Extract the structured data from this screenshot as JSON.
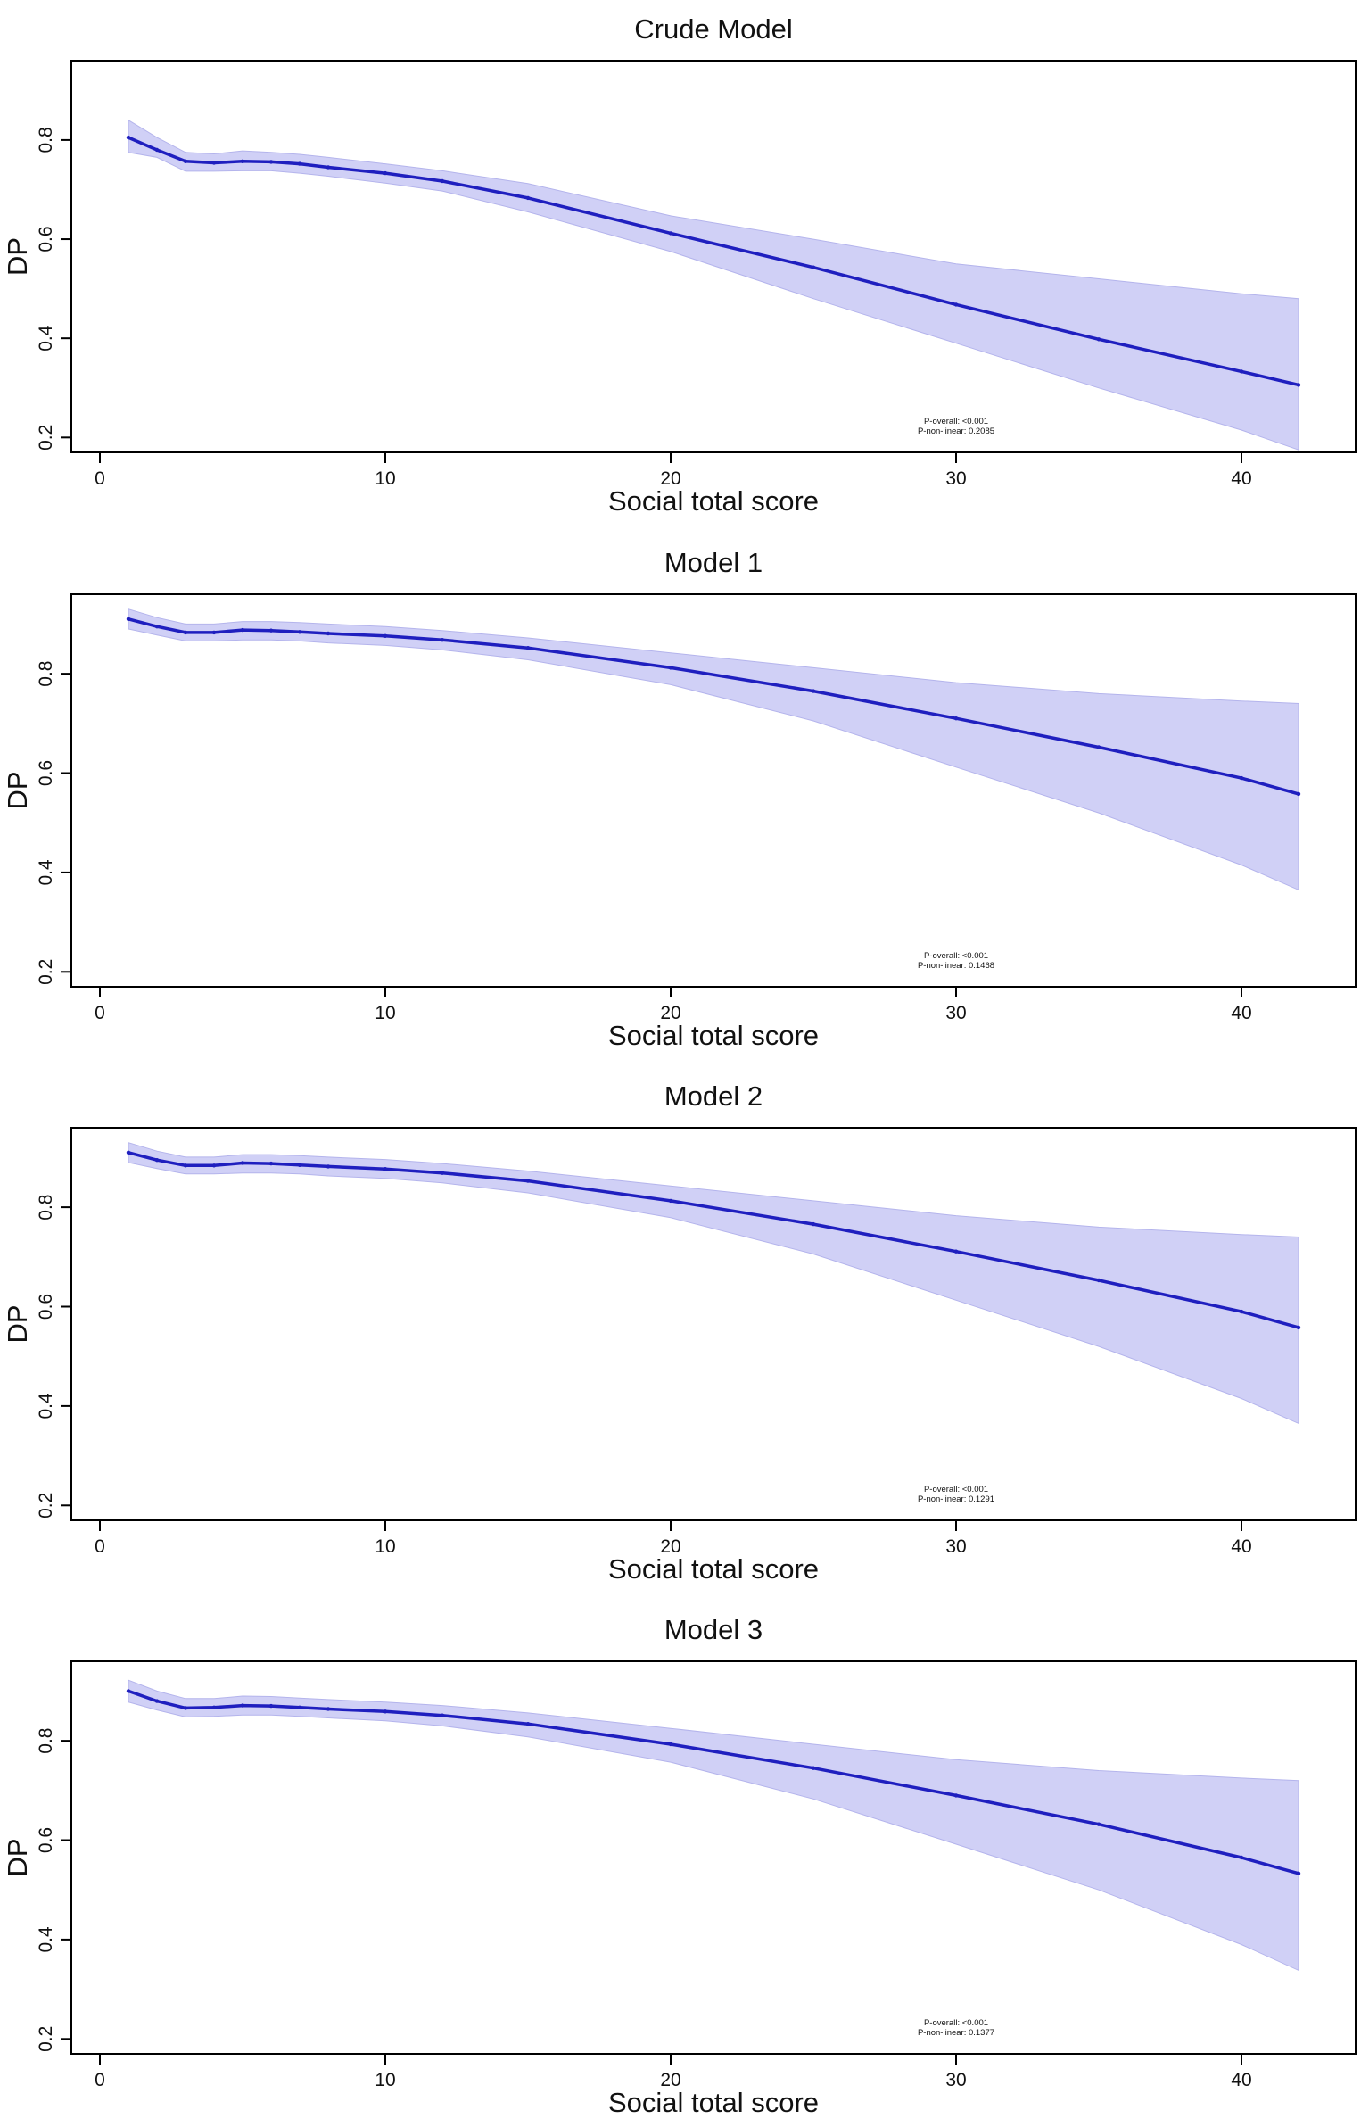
{
  "colors": {
    "line": "#1f1fbf",
    "band": "#c8c8f4",
    "axis": "#000000",
    "text": "#111111"
  },
  "chart_data": [
    {
      "type": "line",
      "title": "Crude Model",
      "xlabel": "Social total score",
      "ylabel": "DP",
      "xlim": [
        -1,
        44
      ],
      "ylim": [
        0.17,
        0.96
      ],
      "xticks": [
        "0",
        "10",
        "20",
        "30",
        "40"
      ],
      "yticks": [
        "0.2",
        "0.4",
        "0.6",
        "0.8"
      ],
      "grid": false,
      "annotation": [
        "P-overall: <0.001",
        "P-non-linear: 0.2085"
      ],
      "x": [
        1,
        2,
        3,
        4,
        5,
        6,
        7,
        8,
        10,
        12,
        15,
        20,
        25,
        30,
        35,
        40,
        42
      ],
      "y": [
        0.805,
        0.78,
        0.757,
        0.754,
        0.757,
        0.756,
        0.752,
        0.745,
        0.733,
        0.717,
        0.683,
        0.612,
        0.543,
        0.468,
        0.398,
        0.333,
        0.306
      ],
      "lower": [
        0.775,
        0.765,
        0.737,
        0.737,
        0.738,
        0.738,
        0.733,
        0.727,
        0.713,
        0.697,
        0.655,
        0.575,
        0.48,
        0.39,
        0.3,
        0.215,
        0.175
      ],
      "upper": [
        0.84,
        0.805,
        0.775,
        0.772,
        0.778,
        0.775,
        0.771,
        0.765,
        0.752,
        0.738,
        0.712,
        0.647,
        0.6,
        0.55,
        0.52,
        0.49,
        0.48
      ]
    },
    {
      "type": "line",
      "title": "Model 1",
      "xlabel": "Social total score",
      "ylabel": "DP",
      "xlim": [
        -1,
        44
      ],
      "ylim": [
        0.17,
        0.96
      ],
      "xticks": [
        "0",
        "10",
        "20",
        "30",
        "40"
      ],
      "yticks": [
        "0.2",
        "0.4",
        "0.6",
        "0.8"
      ],
      "grid": false,
      "annotation": [
        "P-overall: <0.001",
        "P-non-linear: 0.1468"
      ],
      "x": [
        1,
        2,
        3,
        4,
        5,
        6,
        7,
        8,
        10,
        12,
        15,
        20,
        25,
        30,
        35,
        40,
        42
      ],
      "y": [
        0.91,
        0.895,
        0.883,
        0.883,
        0.888,
        0.887,
        0.884,
        0.881,
        0.876,
        0.868,
        0.852,
        0.812,
        0.765,
        0.71,
        0.652,
        0.59,
        0.558
      ],
      "lower": [
        0.89,
        0.878,
        0.866,
        0.866,
        0.868,
        0.868,
        0.866,
        0.862,
        0.857,
        0.848,
        0.828,
        0.778,
        0.705,
        0.612,
        0.52,
        0.415,
        0.365
      ],
      "upper": [
        0.93,
        0.913,
        0.9,
        0.9,
        0.905,
        0.905,
        0.903,
        0.9,
        0.895,
        0.887,
        0.872,
        0.842,
        0.812,
        0.782,
        0.76,
        0.745,
        0.74
      ]
    },
    {
      "type": "line",
      "title": "Model 2",
      "xlabel": "Social total score",
      "ylabel": "DP",
      "xlim": [
        -1,
        44
      ],
      "ylim": [
        0.17,
        0.96
      ],
      "xticks": [
        "0",
        "10",
        "20",
        "30",
        "40"
      ],
      "yticks": [
        "0.2",
        "0.4",
        "0.6",
        "0.8"
      ],
      "grid": false,
      "annotation": [
        "P-overall: <0.001",
        "P-non-linear: 0.1291"
      ],
      "x": [
        1,
        2,
        3,
        4,
        5,
        6,
        7,
        8,
        10,
        12,
        15,
        20,
        25,
        30,
        35,
        40,
        42
      ],
      "y": [
        0.91,
        0.895,
        0.884,
        0.884,
        0.889,
        0.888,
        0.885,
        0.882,
        0.877,
        0.869,
        0.853,
        0.813,
        0.766,
        0.711,
        0.653,
        0.59,
        0.558
      ],
      "lower": [
        0.89,
        0.878,
        0.867,
        0.867,
        0.869,
        0.869,
        0.867,
        0.863,
        0.858,
        0.849,
        0.829,
        0.779,
        0.706,
        0.613,
        0.52,
        0.415,
        0.365
      ],
      "upper": [
        0.93,
        0.913,
        0.901,
        0.901,
        0.906,
        0.906,
        0.904,
        0.901,
        0.896,
        0.888,
        0.873,
        0.843,
        0.813,
        0.783,
        0.76,
        0.745,
        0.74
      ]
    },
    {
      "type": "line",
      "title": "Model 3",
      "xlabel": "Social total score",
      "ylabel": "DP",
      "xlim": [
        -1,
        44
      ],
      "ylim": [
        0.17,
        0.96
      ],
      "xticks": [
        "0",
        "10",
        "20",
        "30",
        "40"
      ],
      "yticks": [
        "0.2",
        "0.4",
        "0.6",
        "0.8"
      ],
      "grid": false,
      "annotation": [
        "P-overall: <0.001",
        "P-non-linear: 0.1377"
      ],
      "x": [
        1,
        2,
        3,
        4,
        5,
        6,
        7,
        8,
        10,
        12,
        15,
        20,
        25,
        30,
        35,
        40,
        42
      ],
      "y": [
        0.9,
        0.88,
        0.866,
        0.867,
        0.871,
        0.87,
        0.867,
        0.864,
        0.859,
        0.851,
        0.834,
        0.793,
        0.745,
        0.69,
        0.632,
        0.565,
        0.533
      ],
      "lower": [
        0.878,
        0.862,
        0.848,
        0.849,
        0.852,
        0.852,
        0.849,
        0.846,
        0.84,
        0.83,
        0.808,
        0.757,
        0.683,
        0.592,
        0.5,
        0.39,
        0.338
      ],
      "upper": [
        0.922,
        0.9,
        0.885,
        0.885,
        0.89,
        0.889,
        0.886,
        0.883,
        0.878,
        0.871,
        0.856,
        0.825,
        0.793,
        0.762,
        0.74,
        0.725,
        0.72
      ]
    }
  ]
}
